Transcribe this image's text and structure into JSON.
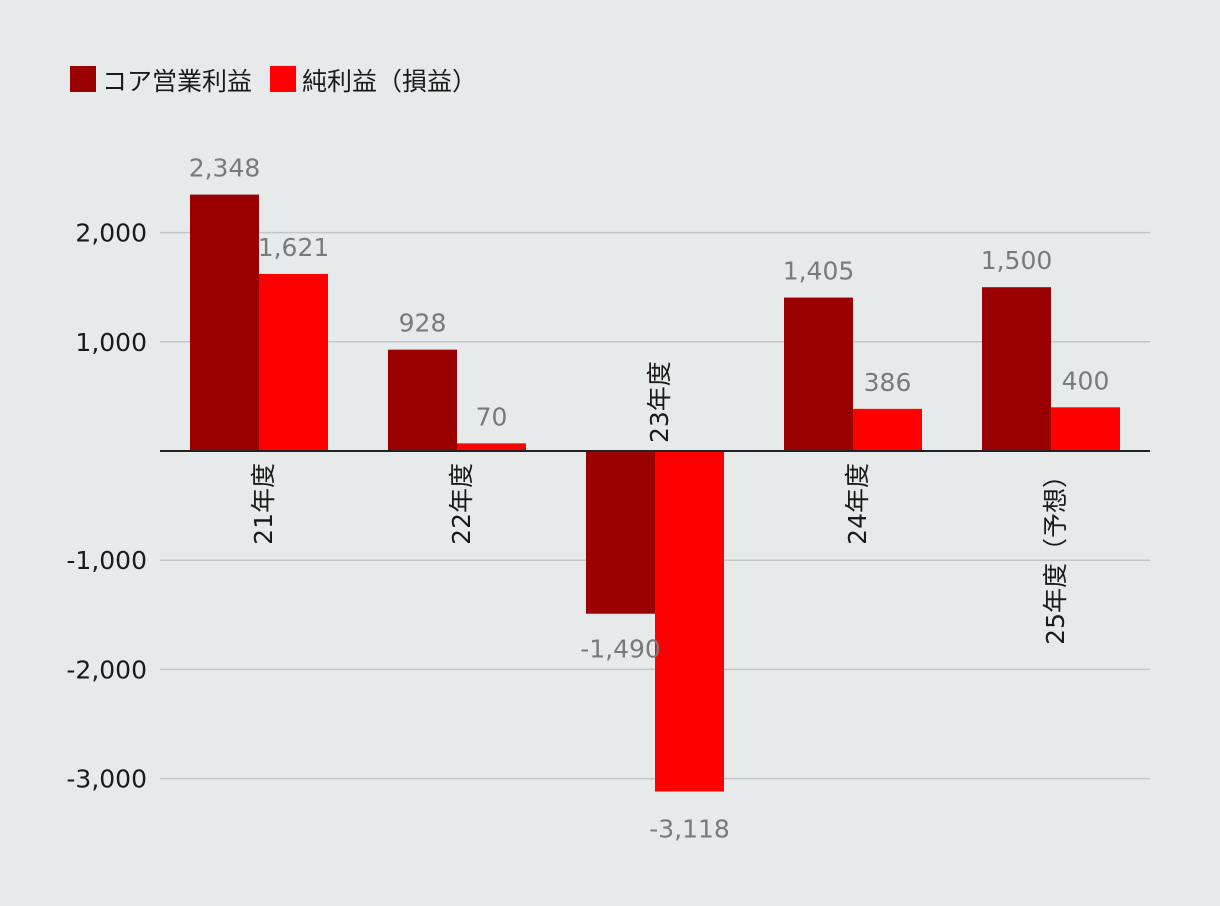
{
  "chart_data": {
    "type": "bar",
    "categories": [
      "21年度",
      "22年度",
      "23年度",
      "24年度",
      "25年度（予想）"
    ],
    "series": [
      {
        "name": "コア営業利益",
        "color": "#9b0000",
        "values": [
          2348,
          928,
          -1490,
          1405,
          1500
        ]
      },
      {
        "name": "純利益（損益）",
        "color": "#ff0000",
        "values": [
          1621,
          70,
          -3118,
          386,
          400
        ]
      }
    ],
    "data_labels": [
      [
        "2,348",
        "928",
        "-1,490",
        "1,405",
        "1,500"
      ],
      [
        "1,621",
        "70",
        "-3,118",
        "386",
        "400"
      ]
    ],
    "y_ticks": [
      2000,
      1000,
      -1000,
      -2000,
      -3000
    ],
    "y_tick_labels": [
      "2,000",
      "1,000",
      "-1,000",
      "-2,000",
      "-3,000"
    ],
    "ylim": [
      -3300,
      2800
    ],
    "grid": true,
    "legend_position": "top-left",
    "x_label_orientation": "vertical"
  }
}
